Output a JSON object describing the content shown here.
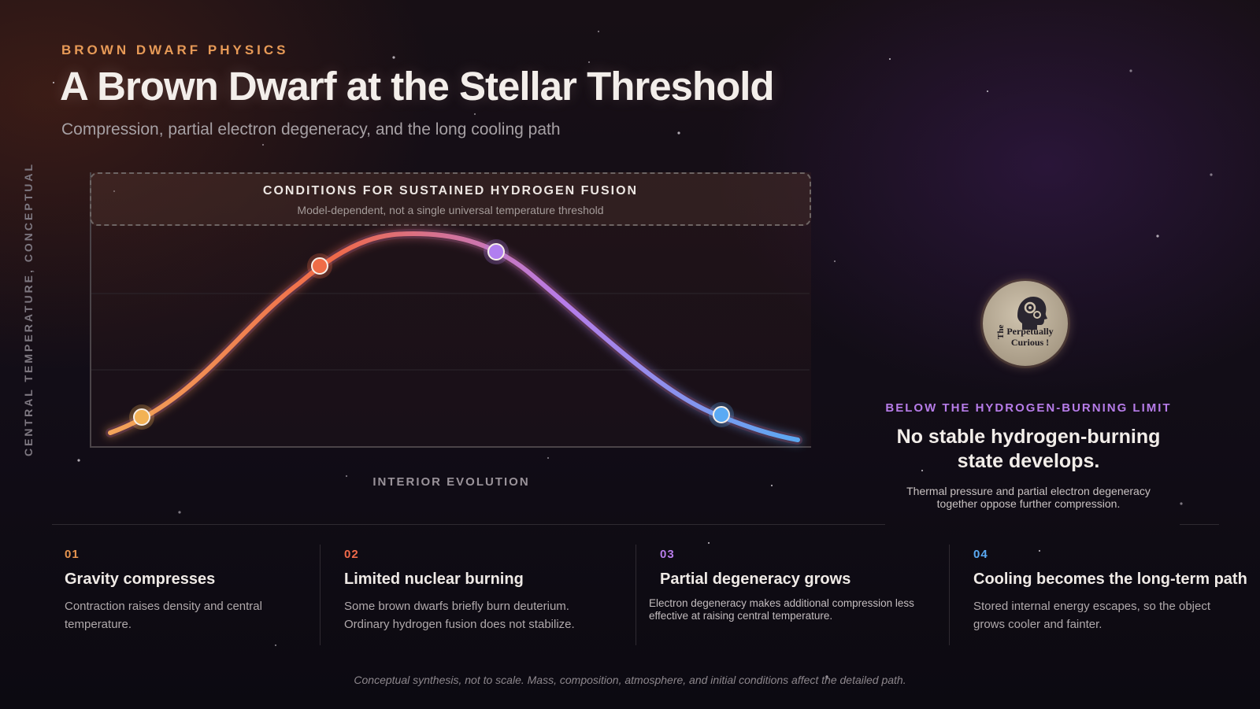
{
  "header": {
    "eyebrow": "BROWN DWARF PHYSICS",
    "title": "A Brown Dwarf at the Stellar Threshold",
    "subtitle": "Compression, partial electron degeneracy, and the long cooling path"
  },
  "diagram": {
    "y_axis_label": "CENTRAL TEMPERATURE, CONCEPTUAL",
    "x_axis_label": "INTERIOR EVOLUTION",
    "fusion_band_title": "CONDITIONS FOR SUSTAINED HYDROGEN FUSION",
    "fusion_band_note": "Model-dependent, not a single universal temperature threshold",
    "curve_colors": [
      "#f2a55a",
      "#ef6a4a",
      "#b77ce9",
      "#5aa9f2"
    ],
    "markers": [
      {
        "step": "01",
        "color": "#f2b255"
      },
      {
        "step": "02",
        "color": "#ef6c47"
      },
      {
        "step": "03",
        "color": "#b17ef0"
      },
      {
        "step": "04",
        "color": "#5aaaf4"
      }
    ]
  },
  "logo": {
    "text_line1": "The Perpetually",
    "text_line2": "Curious !"
  },
  "side_panel": {
    "eyebrow": "BELOW THE HYDROGEN-BURNING LIMIT",
    "headline": "No stable hydrogen-burning state develops.",
    "body": "Thermal pressure and partial electron degeneracy together oppose further compression."
  },
  "steps": [
    {
      "num": "01",
      "color": "#e6944f",
      "title": "Gravity compresses",
      "text": "Contraction raises density and central temperature."
    },
    {
      "num": "02",
      "color": "#ef6a4a",
      "title": "Limited nuclear burning",
      "text": "Some brown dwarfs briefly burn deuterium. Ordinary hydrogen fusion does not stabilize."
    },
    {
      "num": "03",
      "color": "#b77ce9",
      "title": "Partial degeneracy grows",
      "text": "Electron degeneracy makes additional compression less effective at raising central temperature."
    },
    {
      "num": "04",
      "color": "#5aa9f2",
      "title": "Cooling becomes the long-term path",
      "text": "Stored internal energy escapes, so the object grows cooler and fainter."
    }
  ],
  "footnote": "Conceptual synthesis, not to scale. Mass, composition, atmosphere, and initial conditions affect the detailed path."
}
